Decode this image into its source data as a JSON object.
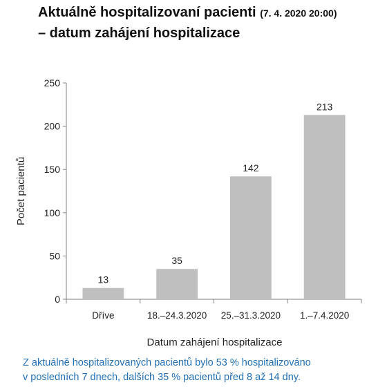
{
  "title": {
    "line1": "Aktuálně hospitalizovaní pacienti",
    "timestamp": "(7. 4. 2020 20:00)",
    "line2": "– datum zahájení hospitalizace"
  },
  "chart_data": {
    "type": "bar",
    "title": "Aktuálně hospitalizovaní pacienti (7. 4. 2020 20:00) – datum zahájení hospitalizace",
    "categories": [
      "Dříve",
      "18.–24.3.2020",
      "25.–31.3.2020",
      "1.–7.4.2020"
    ],
    "values": [
      13,
      35,
      142,
      213
    ],
    "xlabel": "Datum zahájení hospitalizace",
    "ylabel": "Počet pacientů",
    "ylim": [
      0,
      250
    ],
    "yticks": [
      0,
      50,
      100,
      150,
      200,
      250
    ],
    "grid": false,
    "bar_color": "#bfbfbf",
    "data_labels": true
  },
  "note": {
    "line1": "Z aktuálně hospitalizovaných pacientů bylo 53 % hospitalizováno",
    "line2": "v posledních 7 dnech,  dalších 35 % pacientů před 8 až 14 dny."
  },
  "colors": {
    "note_text": "#1f6fb5",
    "axis": "#808080",
    "bars": "#bfbfbf"
  }
}
